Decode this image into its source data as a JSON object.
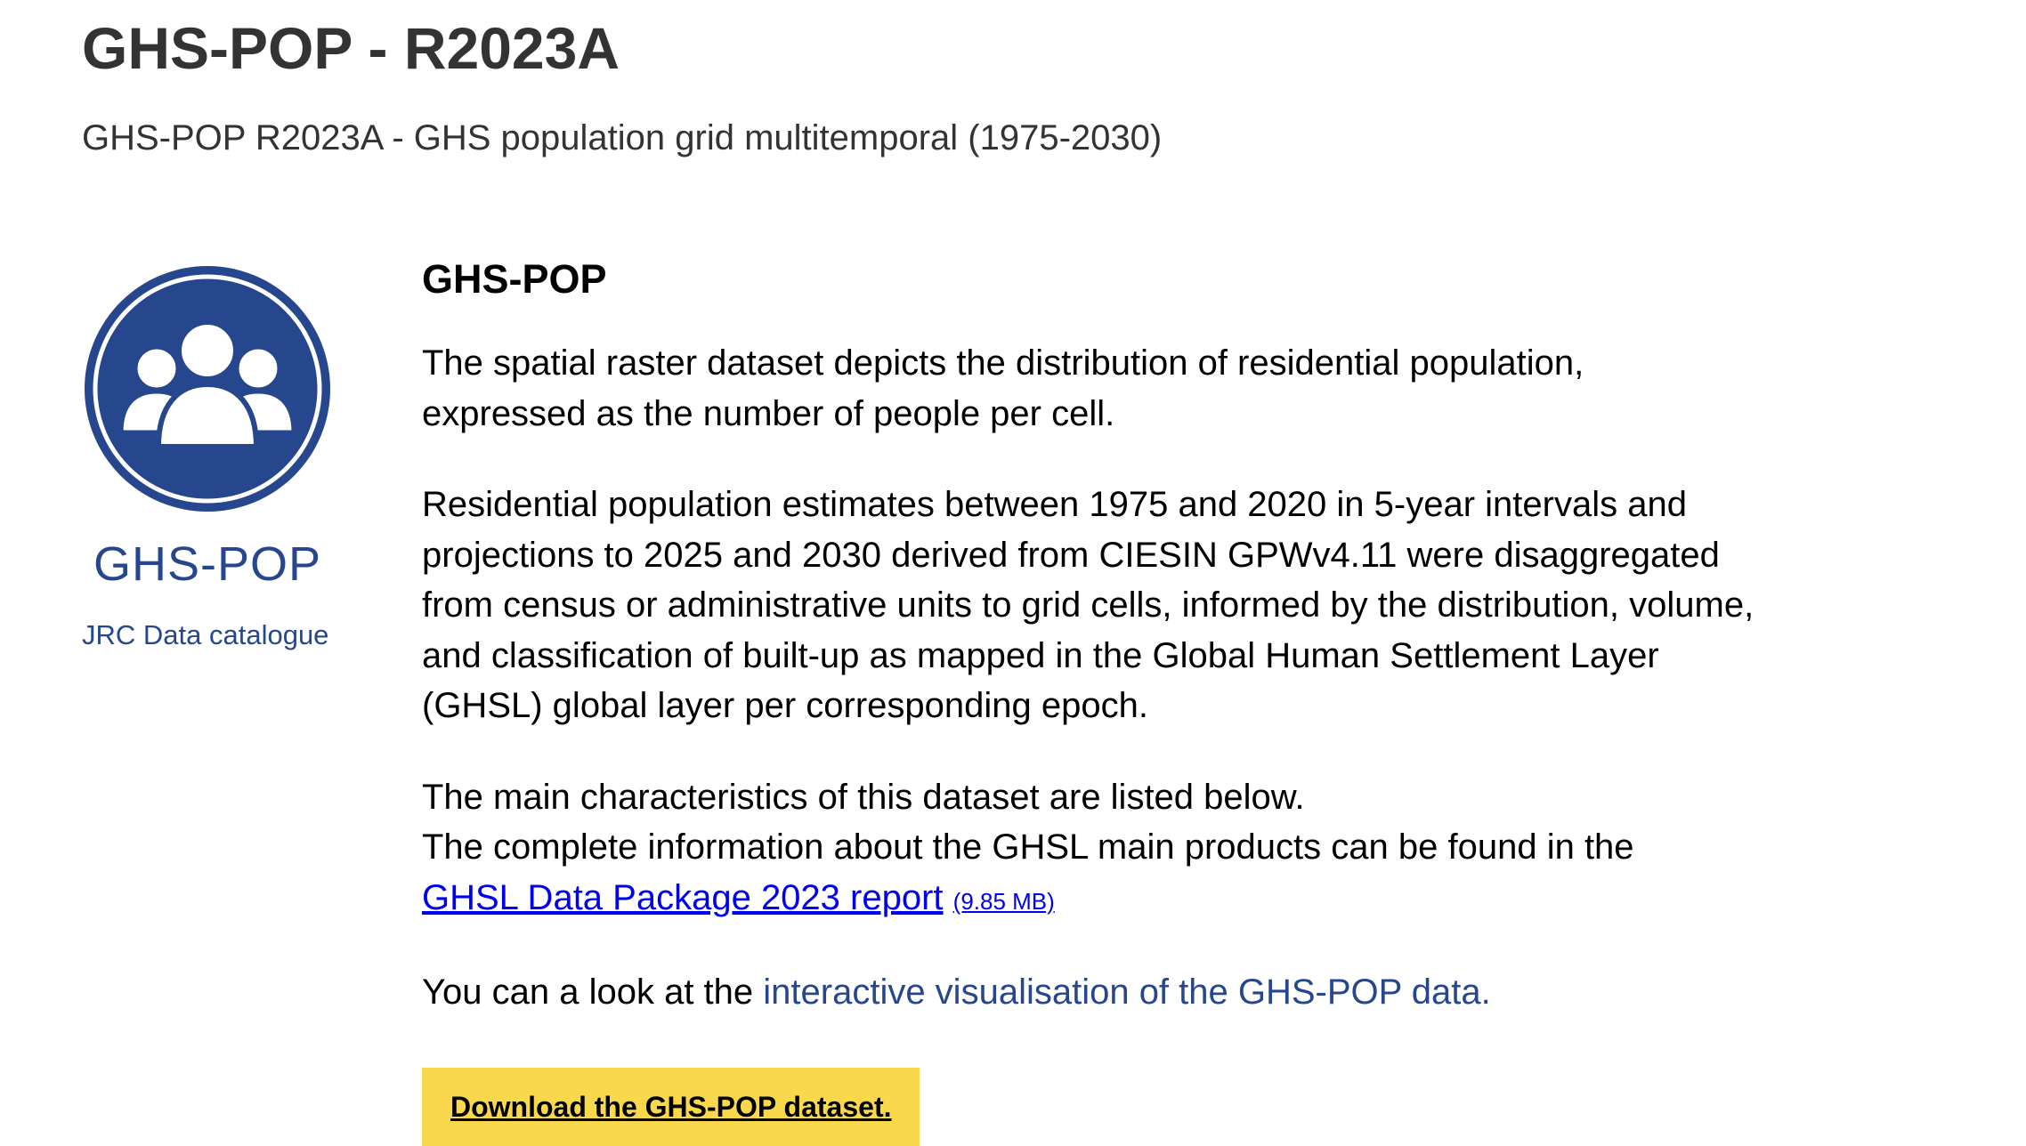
{
  "header": {
    "title": "GHS-POP - R2023A",
    "subtitle": "GHS-POP R2023A - GHS population grid multitemporal (1975-2030)"
  },
  "sidebar": {
    "logo_icon": "people-group-icon",
    "logo_text": "GHS-POP",
    "catalogue_link": "JRC Data catalogue"
  },
  "content": {
    "section_title": "GHS-POP",
    "paragraph_1": "The spatial raster dataset depicts the distribution of residential population, expressed as the number of people per cell.",
    "paragraph_2": "Residential population estimates between 1975 and 2020 in 5-year intervals and projections to 2025 and 2030 derived from CIESIN GPWv4.11 were disaggregated from census or administrative units to grid cells, informed by the distribution, volume, and classification of built-up as mapped in the Global Human Settlement Layer (GHSL) global layer per corresponding epoch.",
    "paragraph_3_line_1": "The main characteristics of this dataset are listed below.",
    "paragraph_3_line_2": "The complete information about the GHSL main products can be found in the",
    "report_link": "GHSL Data Package 2023 report",
    "report_size": "(9.85 MB)",
    "viz_prefix": "You can a look at the ",
    "viz_link": "interactive visualisation of the GHS-POP data.",
    "download_button": "Download the GHS-POP dataset."
  },
  "colors": {
    "brand_blue": "#26478d",
    "link_blue": "#0000ee",
    "button_yellow": "#f9d94b",
    "heading_gray": "#333333"
  }
}
